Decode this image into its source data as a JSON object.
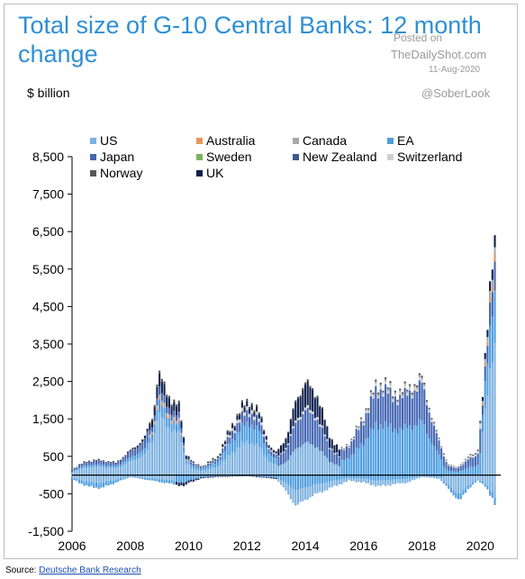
{
  "title": "Total size of G-10 Central Banks: 12 month change",
  "unit_label": "$ billion",
  "watermark": {
    "line1": "Posted on",
    "line2": "TheDailyShot.com",
    "line3": "11-Aug-2020"
  },
  "handle": "@SoberLook",
  "source": {
    "prefix": "Source: ",
    "link": "Deutsche Bank Research"
  },
  "chart_data": {
    "type": "bar",
    "stacked": true,
    "x_range": [
      2006,
      2020.7
    ],
    "ylim": [
      -1500,
      8500
    ],
    "y_ticks": [
      8500,
      7500,
      6500,
      5500,
      4500,
      3500,
      2500,
      1500,
      500,
      -500,
      -1500
    ],
    "y_tick_labels": [
      "8,500",
      "7,500",
      "6,500",
      "5,500",
      "4,500",
      "3,500",
      "2,500",
      "1,500",
      "500",
      "-500",
      "-1,500"
    ],
    "x_ticks": [
      2006,
      2008,
      2010,
      2012,
      2014,
      2016,
      2018,
      2020
    ],
    "x_tick_labels": [
      "2006",
      "2008",
      "2010",
      "2012",
      "2014",
      "2016",
      "2018",
      "2020"
    ],
    "legend_position": "top",
    "series": [
      {
        "name": "US",
        "color": "#7fb2e0"
      },
      {
        "name": "Australia",
        "color": "#e8955c"
      },
      {
        "name": "Canada",
        "color": "#a9a9a9"
      },
      {
        "name": "EA",
        "color": "#4d9de0"
      },
      {
        "name": "Japan",
        "color": "#4466b3"
      },
      {
        "name": "Sweden",
        "color": "#7cb25e"
      },
      {
        "name": "New Zealand",
        "color": "#3d5c8a"
      },
      {
        "name": "Switzerland",
        "color": "#d0d0d0"
      },
      {
        "name": "Norway",
        "color": "#555555"
      },
      {
        "name": "UK",
        "color": "#0d1f4d"
      }
    ],
    "total_anchors": [
      [
        2006.0,
        150
      ],
      [
        2006.5,
        380
      ],
      [
        2007.0,
        400
      ],
      [
        2007.5,
        330
      ],
      [
        2008.0,
        650
      ],
      [
        2008.5,
        1000
      ],
      [
        2008.8,
        1700
      ],
      [
        2008.95,
        2750
      ],
      [
        2009.2,
        2300
      ],
      [
        2009.5,
        1950
      ],
      [
        2009.7,
        1800
      ],
      [
        2009.9,
        600
      ],
      [
        2010.2,
        300
      ],
      [
        2010.5,
        250
      ],
      [
        2011.0,
        500
      ],
      [
        2011.4,
        1200
      ],
      [
        2011.8,
        1800
      ],
      [
        2012.1,
        2000
      ],
      [
        2012.4,
        1700
      ],
      [
        2012.8,
        750
      ],
      [
        2013.0,
        600
      ],
      [
        2013.4,
        1100
      ],
      [
        2013.7,
        2100
      ],
      [
        2014.0,
        2450
      ],
      [
        2014.4,
        2200
      ],
      [
        2014.8,
        1100
      ],
      [
        2015.2,
        650
      ],
      [
        2015.6,
        950
      ],
      [
        2016.0,
        1600
      ],
      [
        2016.4,
        2350
      ],
      [
        2016.7,
        2500
      ],
      [
        2017.0,
        2200
      ],
      [
        2017.5,
        2300
      ],
      [
        2018.0,
        2600
      ],
      [
        2018.3,
        1700
      ],
      [
        2018.6,
        900
      ],
      [
        2018.9,
        300
      ],
      [
        2019.2,
        200
      ],
      [
        2019.6,
        500
      ],
      [
        2019.9,
        600
      ],
      [
        2020.1,
        2300
      ],
      [
        2020.3,
        4400
      ],
      [
        2020.4,
        5900
      ],
      [
        2020.5,
        6400
      ]
    ],
    "negative_anchors": [
      [
        2006.0,
        -100
      ],
      [
        2006.5,
        -300
      ],
      [
        2007.0,
        -350
      ],
      [
        2007.5,
        -200
      ],
      [
        2008.0,
        -50
      ],
      [
        2009.9,
        -300
      ],
      [
        2010.0,
        -200
      ],
      [
        2010.5,
        -80
      ],
      [
        2011.0,
        -50
      ],
      [
        2012.0,
        -30
      ],
      [
        2013.0,
        -100
      ],
      [
        2013.4,
        -500
      ],
      [
        2013.7,
        -850
      ],
      [
        2014.0,
        -650
      ],
      [
        2014.4,
        -500
      ],
      [
        2015.0,
        -300
      ],
      [
        2015.5,
        -150
      ],
      [
        2016.0,
        -200
      ],
      [
        2016.5,
        -300
      ],
      [
        2017.0,
        -250
      ],
      [
        2017.5,
        -200
      ],
      [
        2018.0,
        -50
      ],
      [
        2018.6,
        -100
      ],
      [
        2019.0,
        -450
      ],
      [
        2019.3,
        -700
      ],
      [
        2019.6,
        -350
      ],
      [
        2019.9,
        -150
      ],
      [
        2020.2,
        -300
      ],
      [
        2020.5,
        -800
      ]
    ]
  }
}
